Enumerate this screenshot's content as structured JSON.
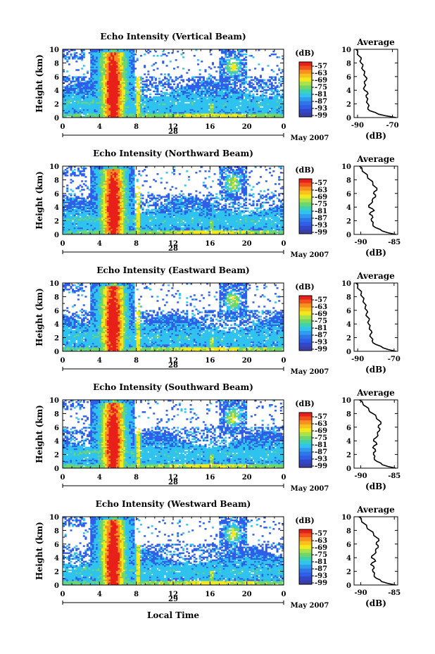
{
  "figure": {
    "date_label": "May 2007",
    "xlabel": "Local Time",
    "ylabel": "Height (km)",
    "colorbar_title": "(dB)",
    "colorbar_ticks": [
      "-57",
      "-63",
      "-69",
      "-75",
      "-81",
      "-87",
      "-93",
      "-99"
    ],
    "avg_title": "Average",
    "avg_xlabel": "(dB)",
    "colors": {
      "red": "#e8201a",
      "orange": "#f7901e",
      "yellow": "#f2e81d",
      "green": "#6fd66c",
      "cyan": "#2fc3ee",
      "blue": "#2f5ee8",
      "dark_blue": "#3a3fa8"
    }
  },
  "chart_data": [
    {
      "type": "heatmap",
      "title": "Echo Intensity (Vertical Beam)",
      "xlabel": "",
      "ylabel": "Height (km)",
      "x_ticks": [
        "0",
        "4",
        "8",
        "12",
        "16",
        "20",
        "0"
      ],
      "y_ticks": [
        "0",
        "2",
        "4",
        "6",
        "8",
        "10"
      ],
      "xlim": [
        0,
        24
      ],
      "ylim": [
        0,
        10
      ],
      "date_day": "28",
      "avg_profile": {
        "title": "Average",
        "xlabel": "(dB)",
        "x_ticks": [
          "-90",
          "-70"
        ],
        "xlim": [
          -92,
          -67
        ],
        "heights": [
          0,
          0.5,
          1,
          1.5,
          2,
          2.5,
          3,
          3.5,
          4,
          4.5,
          5,
          5.5,
          6,
          6.5,
          7,
          7.5,
          8,
          8.5,
          9,
          9.5,
          10
        ],
        "values": [
          -68,
          -78,
          -83,
          -84,
          -84,
          -84.5,
          -85,
          -84,
          -86,
          -86,
          -86,
          -85,
          -85.5,
          -86,
          -87,
          -87,
          -88,
          -88,
          -89,
          -90,
          -91
        ]
      }
    },
    {
      "type": "heatmap",
      "title": "Echo Intensity (Northward Beam)",
      "xlabel": "",
      "ylabel": "Height (km)",
      "x_ticks": [
        "0",
        "4",
        "8",
        "12",
        "16",
        "20",
        "0"
      ],
      "y_ticks": [
        "0",
        "2",
        "4",
        "6",
        "8",
        "10"
      ],
      "xlim": [
        0,
        24
      ],
      "ylim": [
        0,
        10
      ],
      "date_day": "28",
      "avg_profile": {
        "title": "Average",
        "xlabel": "(dB)",
        "x_ticks": [
          "-90",
          "-85"
        ],
        "xlim": [
          -91,
          -84.5
        ],
        "heights": [
          0,
          0.5,
          1,
          1.5,
          2,
          2.5,
          3,
          3.5,
          4,
          4.5,
          5,
          5.5,
          6,
          6.5,
          7,
          7.5,
          8,
          8.5,
          9,
          9.5,
          10
        ],
        "values": [
          -84.8,
          -86.8,
          -87.8,
          -88.2,
          -88.4,
          -88.2,
          -88.7,
          -88.0,
          -88.8,
          -88.5,
          -88.3,
          -87.8,
          -88.1,
          -87.6,
          -87.9,
          -88.2,
          -88.6,
          -89.0,
          -89.4,
          -89.8,
          -90.2
        ]
      }
    },
    {
      "type": "heatmap",
      "title": "Echo Intensity (Eastward Beam)",
      "xlabel": "",
      "ylabel": "Height (km)",
      "x_ticks": [
        "0",
        "4",
        "8",
        "12",
        "16",
        "20",
        "0"
      ],
      "y_ticks": [
        "0",
        "2",
        "4",
        "6",
        "8",
        "10"
      ],
      "xlim": [
        0,
        24
      ],
      "ylim": [
        0,
        10
      ],
      "date_day": "28",
      "avg_profile": {
        "title": "Average",
        "xlabel": "(dB)",
        "x_ticks": [
          "-90",
          "-70"
        ],
        "xlim": [
          -92,
          -68
        ],
        "heights": [
          0,
          0.5,
          1,
          1.5,
          2,
          2.5,
          3,
          3.5,
          4,
          4.5,
          5,
          5.5,
          6,
          6.5,
          7,
          7.5,
          8,
          8.5,
          9,
          9.5,
          10
        ],
        "values": [
          -69,
          -76,
          -80,
          -82,
          -82.5,
          -83,
          -82.5,
          -83.5,
          -84,
          -83.8,
          -84.5,
          -85.2,
          -85,
          -85.8,
          -86.2,
          -86.8,
          -87.5,
          -88,
          -89,
          -90,
          -91
        ]
      }
    },
    {
      "type": "heatmap",
      "title": "Echo Intensity (Southward Beam)",
      "xlabel": "",
      "ylabel": "Height (km)",
      "x_ticks": [
        "0",
        "4",
        "8",
        "12",
        "16",
        "20",
        "0"
      ],
      "y_ticks": [
        "0",
        "2",
        "4",
        "6",
        "8",
        "10"
      ],
      "xlim": [
        0,
        24
      ],
      "ylim": [
        0,
        10
      ],
      "date_day": "28",
      "avg_profile": {
        "title": "Average",
        "xlabel": "(dB)",
        "x_ticks": [
          "-90",
          "-85"
        ],
        "xlim": [
          -91,
          -84.5
        ],
        "heights": [
          0,
          0.5,
          1,
          1.5,
          2,
          2.5,
          3,
          3.5,
          4,
          4.5,
          5,
          5.5,
          6,
          6.5,
          7,
          7.5,
          8,
          8.5,
          9,
          9.5,
          10
        ],
        "values": [
          -84.8,
          -86.8,
          -87.6,
          -88.0,
          -88.1,
          -87.8,
          -88.2,
          -87.6,
          -88.1,
          -87.7,
          -87.5,
          -87.2,
          -87.4,
          -87.0,
          -87.3,
          -87.7,
          -88.2,
          -88.8,
          -89.2,
          -89.7,
          -90.2
        ]
      }
    },
    {
      "type": "heatmap",
      "title": "Echo Intensity (Westward Beam)",
      "xlabel": "Local Time",
      "ylabel": "Height (km)",
      "x_ticks": [
        "0",
        "4",
        "8",
        "12",
        "16",
        "20",
        "0"
      ],
      "y_ticks": [
        "0",
        "2",
        "4",
        "6",
        "8",
        "10"
      ],
      "xlim": [
        0,
        24
      ],
      "ylim": [
        0,
        10
      ],
      "date_day": "29",
      "avg_profile": {
        "title": "Average",
        "xlabel": "(dB)",
        "x_ticks": [
          "-90",
          "-85"
        ],
        "xlim": [
          -91,
          -84.5
        ],
        "heights": [
          0,
          0.5,
          1,
          1.5,
          2,
          2.5,
          3,
          3.5,
          4,
          4.5,
          5,
          5.5,
          6,
          6.5,
          7,
          7.5,
          8,
          8.5,
          9,
          9.5,
          10
        ],
        "values": [
          -84.8,
          -86.9,
          -87.7,
          -88.0,
          -88.2,
          -88.0,
          -88.5,
          -87.8,
          -88.4,
          -88.0,
          -87.8,
          -87.4,
          -87.7,
          -87.3,
          -87.7,
          -88.1,
          -88.6,
          -89.1,
          -89.5,
          -89.9,
          -90.3
        ]
      }
    }
  ]
}
